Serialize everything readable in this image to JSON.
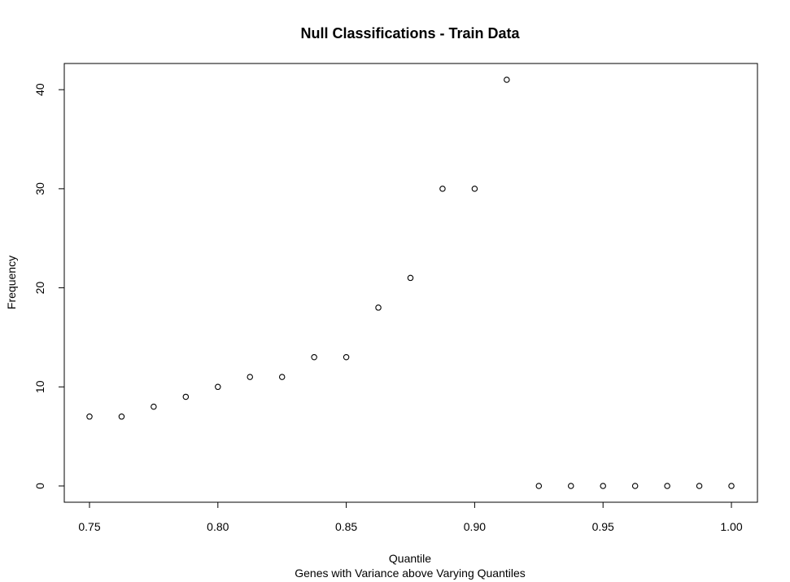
{
  "chart_data": {
    "type": "scatter",
    "title": "Null Classifications - Train Data",
    "xlabel": "Quantile",
    "subtitle": "Genes with Variance above Varying Quantiles",
    "ylabel": "Frequency",
    "xlim": [
      0.75,
      1.0
    ],
    "ylim": [
      0,
      41
    ],
    "x_ticks": [
      0.75,
      0.8,
      0.85,
      0.9,
      0.95,
      1.0
    ],
    "x_tick_labels": [
      "0.75",
      "0.80",
      "0.85",
      "0.90",
      "0.95",
      "1.00"
    ],
    "y_ticks": [
      0,
      10,
      20,
      30,
      40
    ],
    "y_tick_labels": [
      "0",
      "10",
      "20",
      "30",
      "40"
    ],
    "grid": false,
    "marker": "open-circle",
    "color": "#000000",
    "x": [
      0.75,
      0.7625,
      0.775,
      0.7875,
      0.8,
      0.8125,
      0.825,
      0.8375,
      0.85,
      0.8625,
      0.875,
      0.8875,
      0.9,
      0.9125,
      0.925,
      0.9375,
      0.95,
      0.9625,
      0.975,
      0.9875,
      1.0
    ],
    "y": [
      7,
      7,
      8,
      9,
      10,
      11,
      11,
      13,
      13,
      18,
      21,
      30,
      30,
      41,
      0,
      0,
      0,
      0,
      0,
      0,
      0
    ]
  }
}
